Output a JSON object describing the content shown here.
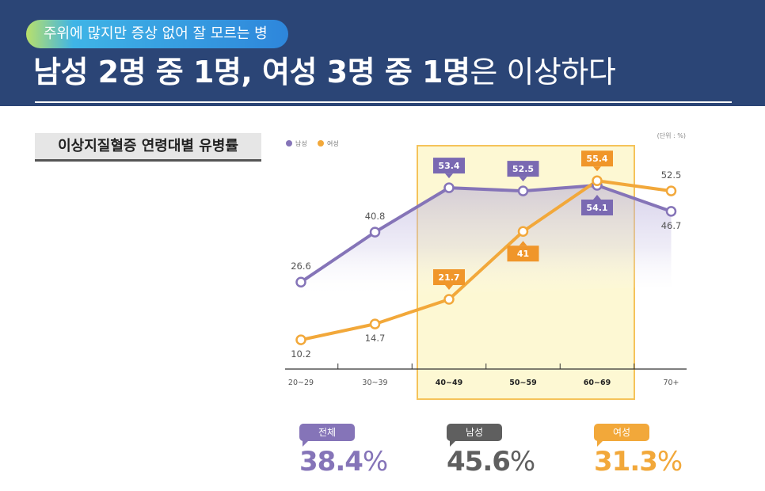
{
  "header": {
    "pill": "주위에 많지만 증상 없어 잘 모르는 병",
    "headline_bold": "남성 2명 중 1명, 여성 3명 중 1명",
    "headline_light": "은 이상하다"
  },
  "chart_title": "이상지질혈증 연령대별 유병률",
  "chart_data": {
    "type": "line",
    "title": "이상지질혈증 연령대별 유병률",
    "unit_label": "(단위 : %)",
    "categories": [
      "20~29",
      "30~39",
      "40~49",
      "50~59",
      "60~69",
      "70+"
    ],
    "highlight_categories": [
      "40~49",
      "50~59",
      "60~69"
    ],
    "legend": [
      "남성",
      "여성"
    ],
    "series": [
      {
        "name": "남성",
        "values": [
          26.6,
          40.8,
          53.4,
          52.5,
          54.1,
          46.7
        ],
        "color": "#8574b8",
        "labels": [
          "26.6",
          "40.8",
          "53.4",
          "52.5",
          "54.1",
          "46.7"
        ]
      },
      {
        "name": "여성",
        "values": [
          10.2,
          14.7,
          21.7,
          41,
          55.4,
          52.5
        ],
        "color": "#f2a83a",
        "labels": [
          "10.2",
          "14.7",
          "21.7",
          "41",
          "55.4",
          "52.5"
        ]
      }
    ],
    "xlabel": "",
    "ylabel": "",
    "ylim": [
      0,
      60
    ]
  },
  "stats": [
    {
      "label": "전체",
      "value": "38.4",
      "unit": "%",
      "color": "#8574b8"
    },
    {
      "label": "남성",
      "value": "45.6",
      "unit": "%",
      "color": "#5f5f5f"
    },
    {
      "label": "여성",
      "value": "31.3",
      "unit": "%",
      "color": "#f2a83a"
    }
  ],
  "colors": {
    "header_bg": "#2b4576",
    "highlight_fill": "#fdf8d3",
    "highlight_stroke": "#f5c35a",
    "label_purple": "#7a69b2",
    "label_orange": "#f0962a"
  }
}
